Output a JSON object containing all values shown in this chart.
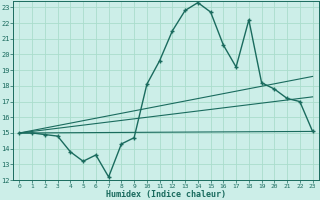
{
  "title": "",
  "xlabel": "Humidex (Indice chaleur)",
  "bg_color": "#cceee8",
  "grid_color": "#aaddcc",
  "line_color": "#1a6b5e",
  "xlim": [
    -0.5,
    23.5
  ],
  "ylim": [
    12,
    23.4
  ],
  "xticks": [
    0,
    1,
    2,
    3,
    4,
    5,
    6,
    7,
    8,
    9,
    10,
    11,
    12,
    13,
    14,
    15,
    16,
    17,
    18,
    19,
    20,
    21,
    22,
    23
  ],
  "yticks": [
    12,
    13,
    14,
    15,
    16,
    17,
    18,
    19,
    20,
    21,
    22,
    23
  ],
  "main_curve_x": [
    0,
    1,
    2,
    3,
    4,
    5,
    6,
    7,
    8,
    9,
    10,
    11,
    12,
    13,
    14,
    15,
    16,
    17,
    18,
    19,
    20,
    21,
    22,
    23
  ],
  "main_curve_y": [
    15.0,
    15.0,
    14.9,
    14.8,
    13.8,
    13.2,
    13.6,
    12.2,
    14.3,
    14.7,
    18.1,
    19.6,
    21.5,
    22.8,
    23.3,
    22.7,
    20.6,
    19.2,
    22.2,
    18.2,
    17.8,
    17.2,
    17.0,
    15.1
  ],
  "line1_x": [
    0,
    23
  ],
  "line1_y": [
    15.0,
    15.1
  ],
  "line2_x": [
    0,
    23
  ],
  "line2_y": [
    15.0,
    17.3
  ],
  "line3_x": [
    0,
    23
  ],
  "line3_y": [
    15.0,
    18.6
  ]
}
